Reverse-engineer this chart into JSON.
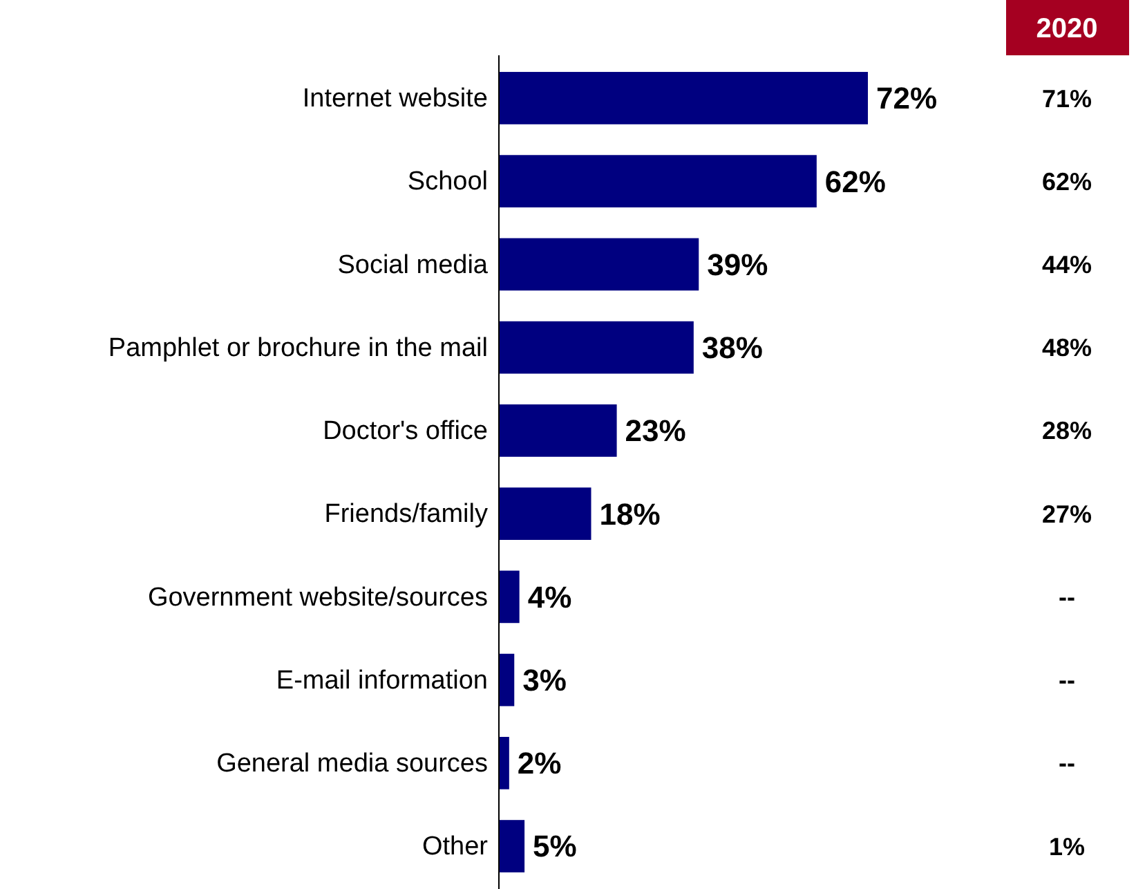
{
  "chart_data": {
    "type": "bar",
    "orientation": "horizontal",
    "categories": [
      "Internet website",
      "School",
      "Social media",
      "Pamphlet or brochure in the mail",
      "Doctor's office",
      "Friends/family",
      "Government website/sources",
      "E-mail information",
      "General media sources",
      "Other"
    ],
    "values": [
      72,
      62,
      39,
      38,
      23,
      18,
      4,
      3,
      2,
      5
    ],
    "value_labels": [
      "72%",
      "62%",
      "39%",
      "38%",
      "23%",
      "18%",
      "4%",
      "3%",
      "2%",
      "5%"
    ],
    "color": "#000080",
    "annotations": [
      "2020",
      "71%",
      "62%",
      "44%",
      "48%",
      "28%",
      "27%",
      "--",
      "--",
      "--",
      "1%"
    ]
  }
}
